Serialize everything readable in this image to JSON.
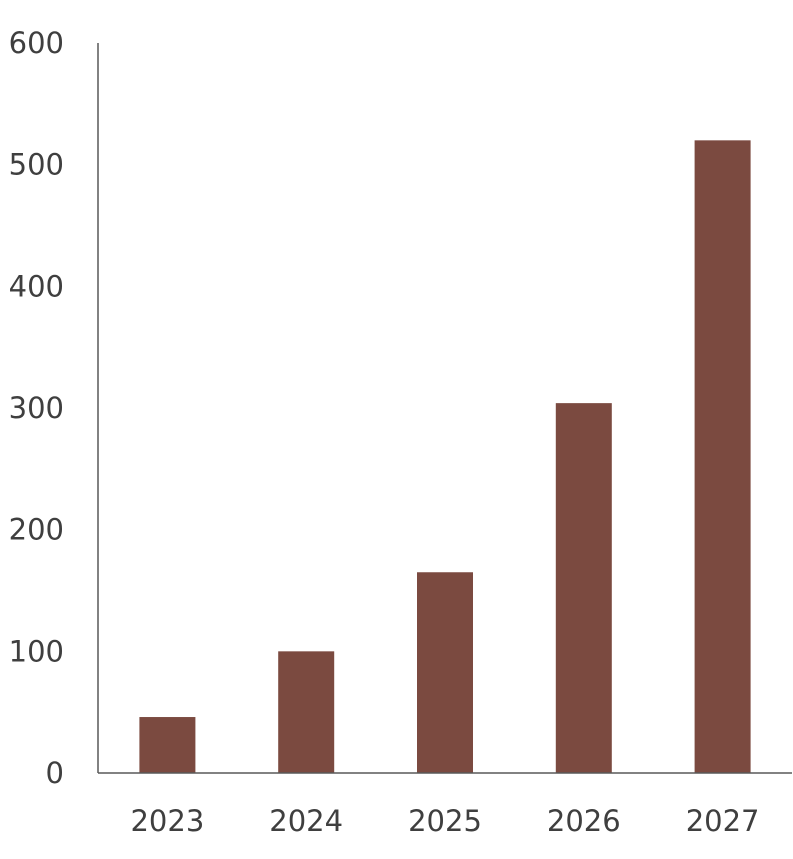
{
  "chart_data": {
    "type": "bar",
    "categories": [
      "2023",
      "2024",
      "2025",
      "2026",
      "2027"
    ],
    "values": [
      46,
      100,
      165,
      304,
      520
    ],
    "ylim": [
      0,
      600
    ],
    "yticks": [
      0,
      100,
      200,
      300,
      400,
      500,
      600
    ],
    "grid": false,
    "bar_color": "#7b4a40",
    "axis_color": "#595959",
    "label_color": "#3f3f3f"
  }
}
